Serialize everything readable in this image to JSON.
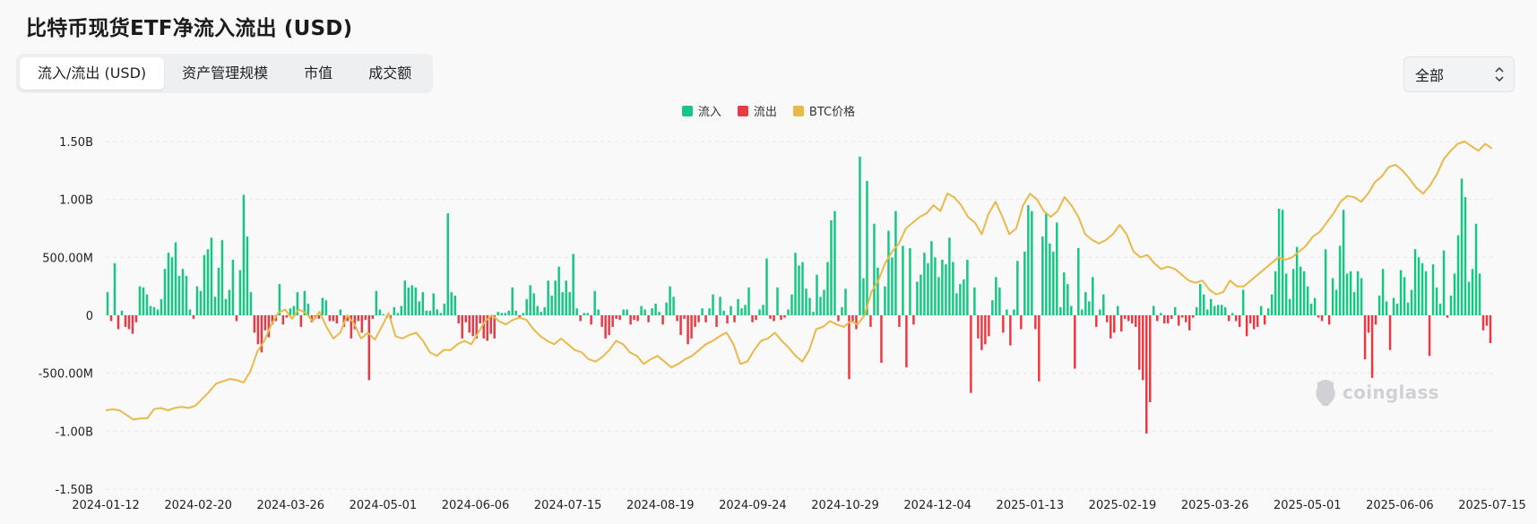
{
  "page": {
    "title": "比特币现货ETF净流入流出 (USD)"
  },
  "tabs": [
    {
      "label": "流入/流出 (USD)",
      "active": true
    },
    {
      "label": "资产管理规模",
      "active": false
    },
    {
      "label": "市值",
      "active": false
    },
    {
      "label": "成交额",
      "active": false
    }
  ],
  "filter": {
    "selected": "全部"
  },
  "watermark": {
    "text": "coinglass"
  },
  "colors": {
    "inflow": "#16c784",
    "outflow": "#ea3943",
    "price": "#e9b949"
  },
  "chart_data": {
    "type": "bar",
    "legend": [
      "流入",
      "流出",
      "BTC价格"
    ],
    "legend_position": "top-center",
    "grid": true,
    "ylim": [
      -1.5,
      1.5
    ],
    "y_ticks": [
      {
        "value": 1.5,
        "label": "1.50B"
      },
      {
        "value": 1.0,
        "label": "1.00B"
      },
      {
        "value": 0.5,
        "label": "500.00M"
      },
      {
        "value": 0,
        "label": "0"
      },
      {
        "value": -0.5,
        "label": "-500.00M"
      },
      {
        "value": -1.0,
        "label": "-1.00B"
      },
      {
        "value": -1.5,
        "label": "-1.50B"
      }
    ],
    "x_ticks": [
      "2024-01-12",
      "2024-02-20",
      "2024-03-26",
      "2024-05-01",
      "2024-06-06",
      "2024-07-15",
      "2024-08-19",
      "2024-09-24",
      "2024-10-29",
      "2024-12-04",
      "2025-01-13",
      "2025-02-19",
      "2025-03-26",
      "2025-05-01",
      "2025-06-06",
      "2025-07-15"
    ],
    "series": [
      {
        "name": "净流入流出 (B USD)",
        "values": [
          0.2,
          -0.05,
          0.45,
          -0.12,
          0.04,
          -0.1,
          -0.12,
          -0.16,
          -0.06,
          0.25,
          0.24,
          0.18,
          0.08,
          0.07,
          0.05,
          0.14,
          0.4,
          0.54,
          0.5,
          0.63,
          0.34,
          0.4,
          0.34,
          0.05,
          -0.03,
          0.25,
          0.21,
          0.52,
          0.57,
          0.67,
          0.16,
          0.41,
          0.65,
          0.14,
          0.22,
          0.48,
          -0.05,
          0.39,
          1.04,
          0.68,
          0.2,
          -0.15,
          -0.25,
          -0.32,
          -0.13,
          -0.19,
          -0.08,
          -0.05,
          0.27,
          -0.08,
          -0.02,
          0.06,
          0.08,
          0.2,
          -0.1,
          0.21,
          0.1,
          -0.06,
          -0.03,
          -0.03,
          0.15,
          0.13,
          -0.05,
          -0.05,
          -0.07,
          0.05,
          -0.1,
          -0.05,
          -0.2,
          -0.12,
          -0.05,
          -0.15,
          -0.04,
          -0.56,
          -0.03,
          0.21,
          0.05,
          0.01,
          -0.02,
          -0.03,
          0.07,
          0.02,
          0.08,
          0.3,
          0.24,
          0.26,
          0.24,
          0.12,
          0.2,
          0.04,
          0.04,
          0.19,
          0.05,
          0.02,
          0.1,
          0.88,
          0.2,
          0.17,
          -0.07,
          -0.2,
          -0.06,
          -0.15,
          -0.18,
          -0.2,
          -0.07,
          -0.2,
          -0.22,
          -0.16,
          -0.2,
          0.03,
          0.02,
          0.02,
          0.04,
          0.24,
          0.04,
          -0.02,
          0.02,
          0.14,
          0.26,
          0.19,
          0.08,
          0.03,
          0.07,
          0.3,
          0.17,
          0.3,
          0.42,
          0.2,
          0.3,
          0.2,
          0.53,
          0.06,
          -0.05,
          0.02,
          0.02,
          -0.08,
          0.21,
          0.05,
          -0.1,
          -0.2,
          -0.17,
          -0.1,
          -0.03,
          -0.04,
          0.05,
          0.05,
          -0.08,
          -0.04,
          -0.05,
          0.08,
          0.05,
          -0.06,
          0.06,
          0.1,
          0.03,
          -0.08,
          0.11,
          0.25,
          0.16,
          -0.05,
          -0.17,
          -0.03,
          -0.25,
          -0.2,
          -0.1,
          -0.06,
          0.06,
          -0.06,
          0.06,
          0.18,
          -0.1,
          0.16,
          0.04,
          -0.07,
          0.08,
          -0.06,
          0.14,
          0.06,
          0.09,
          0.24,
          -0.06,
          -0.04,
          0.05,
          0.09,
          0.49,
          -0.03,
          -0.05,
          0.24,
          -0.04,
          -0.02,
          0.05,
          0.18,
          0.54,
          0.43,
          0.46,
          0.23,
          0.15,
          0.03,
          0.35,
          0.16,
          0.22,
          0.46,
          0.82,
          0.9,
          -0.05,
          0.07,
          0.23,
          -0.55,
          -0.05,
          -0.12,
          1.37,
          0.32,
          1.16,
          -0.1,
          0.79,
          0.41,
          -0.41,
          0.25,
          0.73,
          0.5,
          0.9,
          -0.1,
          0.6,
          -0.45,
          0.58,
          -0.08,
          0.29,
          0.35,
          0.54,
          0.45,
          0.64,
          0.5,
          0.33,
          0.48,
          0.44,
          0.67,
          0.46,
          0.19,
          0.27,
          0.31,
          0.48,
          -0.67,
          0.24,
          -0.2,
          -0.3,
          -0.25,
          -0.18,
          0.13,
          0.33,
          0.24,
          -0.15,
          0.05,
          -0.26,
          0.05,
          0.47,
          -0.12,
          0.55,
          0.95,
          0.9,
          -0.12,
          -0.57,
          0.68,
          0.88,
          0.62,
          0.55,
          0.8,
          0.07,
          0.37,
          0.27,
          0.08,
          -0.46,
          0.58,
          0.05,
          0.2,
          0.12,
          0.33,
          -0.1,
          0.05,
          0.18,
          -0.06,
          -0.2,
          -0.15,
          0.08,
          -0.14,
          -0.03,
          -0.05,
          -0.07,
          -0.1,
          -0.47,
          -0.56,
          -1.02,
          -0.75,
          0.08,
          -0.05,
          0.02,
          -0.07,
          -0.07,
          -0.03,
          0.07,
          -0.09,
          -0.02,
          -0.06,
          -0.13,
          -0.02,
          0.07,
          0.27,
          0.18,
          0.05,
          0.14,
          0.08,
          0.09,
          0.09,
          0.07,
          -0.05,
          0.02,
          -0.05,
          -0.1,
          0.22,
          -0.18,
          -0.07,
          -0.12,
          -0.1,
          0.08,
          -0.08,
          0.06,
          0.18,
          0.38,
          0.92,
          0.91,
          0.36,
          0.14,
          0.4,
          0.59,
          0.42,
          0.38,
          0.25,
          0.1,
          0.15,
          -0.02,
          -0.05,
          0.57,
          -0.08,
          0.32,
          0.22,
          0.6,
          0.91,
          0.36,
          0.38,
          0.2,
          0.38,
          0.32,
          -0.38,
          -0.15,
          -0.54,
          -0.08,
          0.17,
          0.4,
          0.12,
          -0.3,
          0.15,
          0.1,
          0.39,
          0.33,
          0.11,
          0.22,
          0.57,
          0.5,
          0.45,
          0.38,
          -0.35,
          0.44,
          0.24,
          0.1,
          0.56,
          -0.02,
          0.17,
          0.36,
          0.69,
          1.18,
          1.02,
          0.29,
          0.4,
          0.79,
          0.36,
          -0.13,
          -0.09,
          -0.24
        ]
      },
      {
        "name": "BTC价格",
        "values": [
          -0.82,
          -0.81,
          -0.82,
          -0.86,
          -0.9,
          -0.89,
          -0.89,
          -0.81,
          -0.8,
          -0.82,
          -0.8,
          -0.79,
          -0.8,
          -0.78,
          -0.72,
          -0.66,
          -0.59,
          -0.57,
          -0.55,
          -0.56,
          -0.58,
          -0.48,
          -0.31,
          -0.22,
          -0.08,
          0.02,
          0.05,
          -0.03,
          0.05,
          0.02,
          -0.05,
          0.03,
          -0.1,
          -0.2,
          -0.15,
          0.0,
          -0.07,
          -0.2,
          -0.15,
          -0.21,
          -0.1,
          0.02,
          -0.18,
          -0.2,
          -0.17,
          -0.15,
          -0.22,
          -0.32,
          -0.35,
          -0.3,
          -0.3,
          -0.25,
          -0.22,
          -0.25,
          -0.15,
          -0.05,
          0.0,
          -0.05,
          -0.08,
          -0.04,
          -0.02,
          -0.04,
          -0.12,
          -0.18,
          -0.22,
          -0.25,
          -0.2,
          -0.25,
          -0.3,
          -0.32,
          -0.38,
          -0.4,
          -0.36,
          -0.3,
          -0.22,
          -0.25,
          -0.32,
          -0.35,
          -0.42,
          -0.38,
          -0.35,
          -0.4,
          -0.45,
          -0.42,
          -0.38,
          -0.35,
          -0.3,
          -0.25,
          -0.22,
          -0.18,
          -0.15,
          -0.25,
          -0.42,
          -0.4,
          -0.3,
          -0.22,
          -0.2,
          -0.15,
          -0.22,
          -0.28,
          -0.35,
          -0.4,
          -0.3,
          -0.12,
          -0.1,
          -0.05,
          -0.08,
          -0.1,
          -0.05,
          -0.08,
          0.0,
          0.2,
          0.3,
          0.45,
          0.55,
          0.62,
          0.75,
          0.8,
          0.85,
          0.88,
          0.95,
          0.9,
          1.05,
          1.02,
          0.95,
          0.85,
          0.8,
          0.7,
          0.88,
          0.98,
          0.85,
          0.7,
          0.75,
          0.95,
          1.05,
          1.0,
          0.9,
          0.85,
          0.9,
          1.02,
          0.95,
          0.85,
          0.7,
          0.65,
          0.62,
          0.65,
          0.7,
          0.78,
          0.7,
          0.55,
          0.5,
          0.52,
          0.45,
          0.4,
          0.42,
          0.4,
          0.35,
          0.3,
          0.28,
          0.3,
          0.22,
          0.18,
          0.2,
          0.3,
          0.25,
          0.25,
          0.3,
          0.35,
          0.4,
          0.45,
          0.5,
          0.48,
          0.5,
          0.55,
          0.6,
          0.68,
          0.72,
          0.8,
          0.88,
          0.98,
          1.03,
          1.02,
          0.98,
          1.05,
          1.15,
          1.2,
          1.28,
          1.3,
          1.25,
          1.18,
          1.1,
          1.05,
          1.12,
          1.22,
          1.35,
          1.42,
          1.48,
          1.5,
          1.46,
          1.42,
          1.48,
          1.44
        ]
      }
    ]
  }
}
